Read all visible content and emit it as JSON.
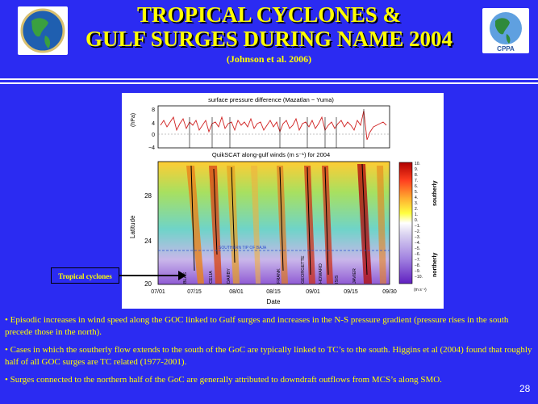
{
  "slide": {
    "title_line1": "TROPICAL CYCLONES &",
    "title_line2": "GULF SURGES DURING NAME 2004",
    "citation": "(Johnson et al. 2006)",
    "page_number": "28"
  },
  "annotation": {
    "label": "Tropical cyclones"
  },
  "figure": {
    "top_panel": {
      "title": "surface pressure difference (Mazatlan − Yuma)",
      "ylabel": "(hPa)",
      "yticks": [
        "8",
        "4",
        "0",
        "−4"
      ]
    },
    "bottom_panel": {
      "title": "QuikSCAT along-gulf winds (m s⁻¹) for 2004",
      "ylabel": "Latitude",
      "yticks": [
        "28",
        "24",
        "20"
      ],
      "xlabel": "Date",
      "xticks": [
        "07/01",
        "07/15",
        "08/01",
        "08/15",
        "09/01",
        "09/15",
        "09/30"
      ],
      "dashed_line_label": "SOUTHERN TIP OF BAJA",
      "storm_labels": [
        "BLAS",
        "CELIA",
        "DARBY",
        "FRANK",
        "GEORGETTE",
        "HOWARD",
        "ISIS",
        "JAVIER"
      ]
    },
    "colorbar": {
      "ticks": [
        "10.",
        "9.",
        "8.",
        "7.",
        "6.",
        "5.",
        "4.",
        "3.",
        "2.",
        "1.",
        "0.",
        "−1.",
        "−2.",
        "−3.",
        "−4.",
        "−5.",
        "−6.",
        "−7.",
        "−8.",
        "−9.",
        "−10."
      ],
      "unit": "(m s⁻¹)",
      "label_top": "southerly",
      "label_bottom": "northerly"
    }
  },
  "bullets": [
    "• Episodic increases in wind speed along the GOC linked to Gulf surges and increases in the N-S pressure gradient (pressure rises in the south precede those in the north).",
    "• Cases in which the southerly flow extends to the south of the GoC are typically linked to TC’s to the south.  Higgins et al (2004) found that roughly half of all GOC surges are TC related (1977-2001).",
    "• Surges connected to the northern half of the GoC are generally attributed to downdraft outflows from MCS’s along SMO."
  ],
  "colors": {
    "background": "#2b2bf2",
    "title": "#ffff00",
    "text": "#ffff00"
  }
}
